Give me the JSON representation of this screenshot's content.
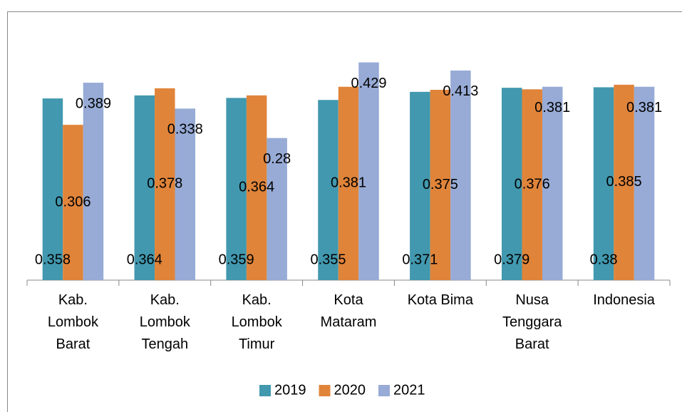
{
  "chart_data": {
    "type": "bar",
    "categories": [
      "Kab. Lombok Barat",
      "Kab. Lombok Tengah",
      "Kab. Lombok Timur",
      "Kota Mataram",
      "Kota Bima",
      "Nusa Tenggara Barat",
      "Indonesia"
    ],
    "series": [
      {
        "name": "2019",
        "color": "#4198af",
        "values": [
          0.358,
          0.364,
          0.359,
          0.355,
          0.371,
          0.379,
          0.38
        ]
      },
      {
        "name": "2020",
        "color": "#e0843a",
        "values": [
          0.306,
          0.378,
          0.364,
          0.381,
          0.375,
          0.376,
          0.385
        ]
      },
      {
        "name": "2021",
        "color": "#97abd6",
        "values": [
          0.389,
          0.338,
          0.28,
          0.429,
          0.413,
          0.381,
          0.381
        ]
      }
    ],
    "ylim": [
      0,
      0.5
    ],
    "legend": "bottom"
  }
}
